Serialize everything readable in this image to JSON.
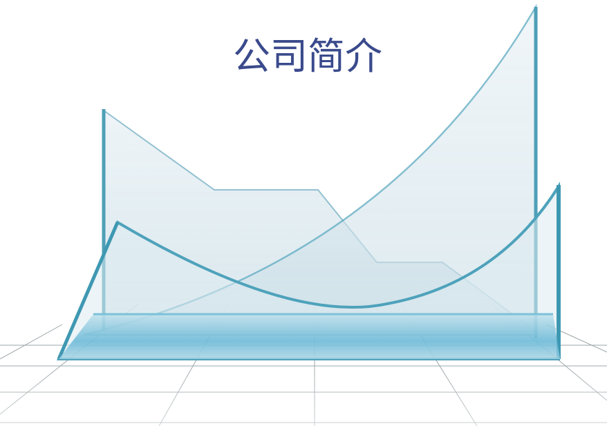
{
  "title": "公司简介"
}
